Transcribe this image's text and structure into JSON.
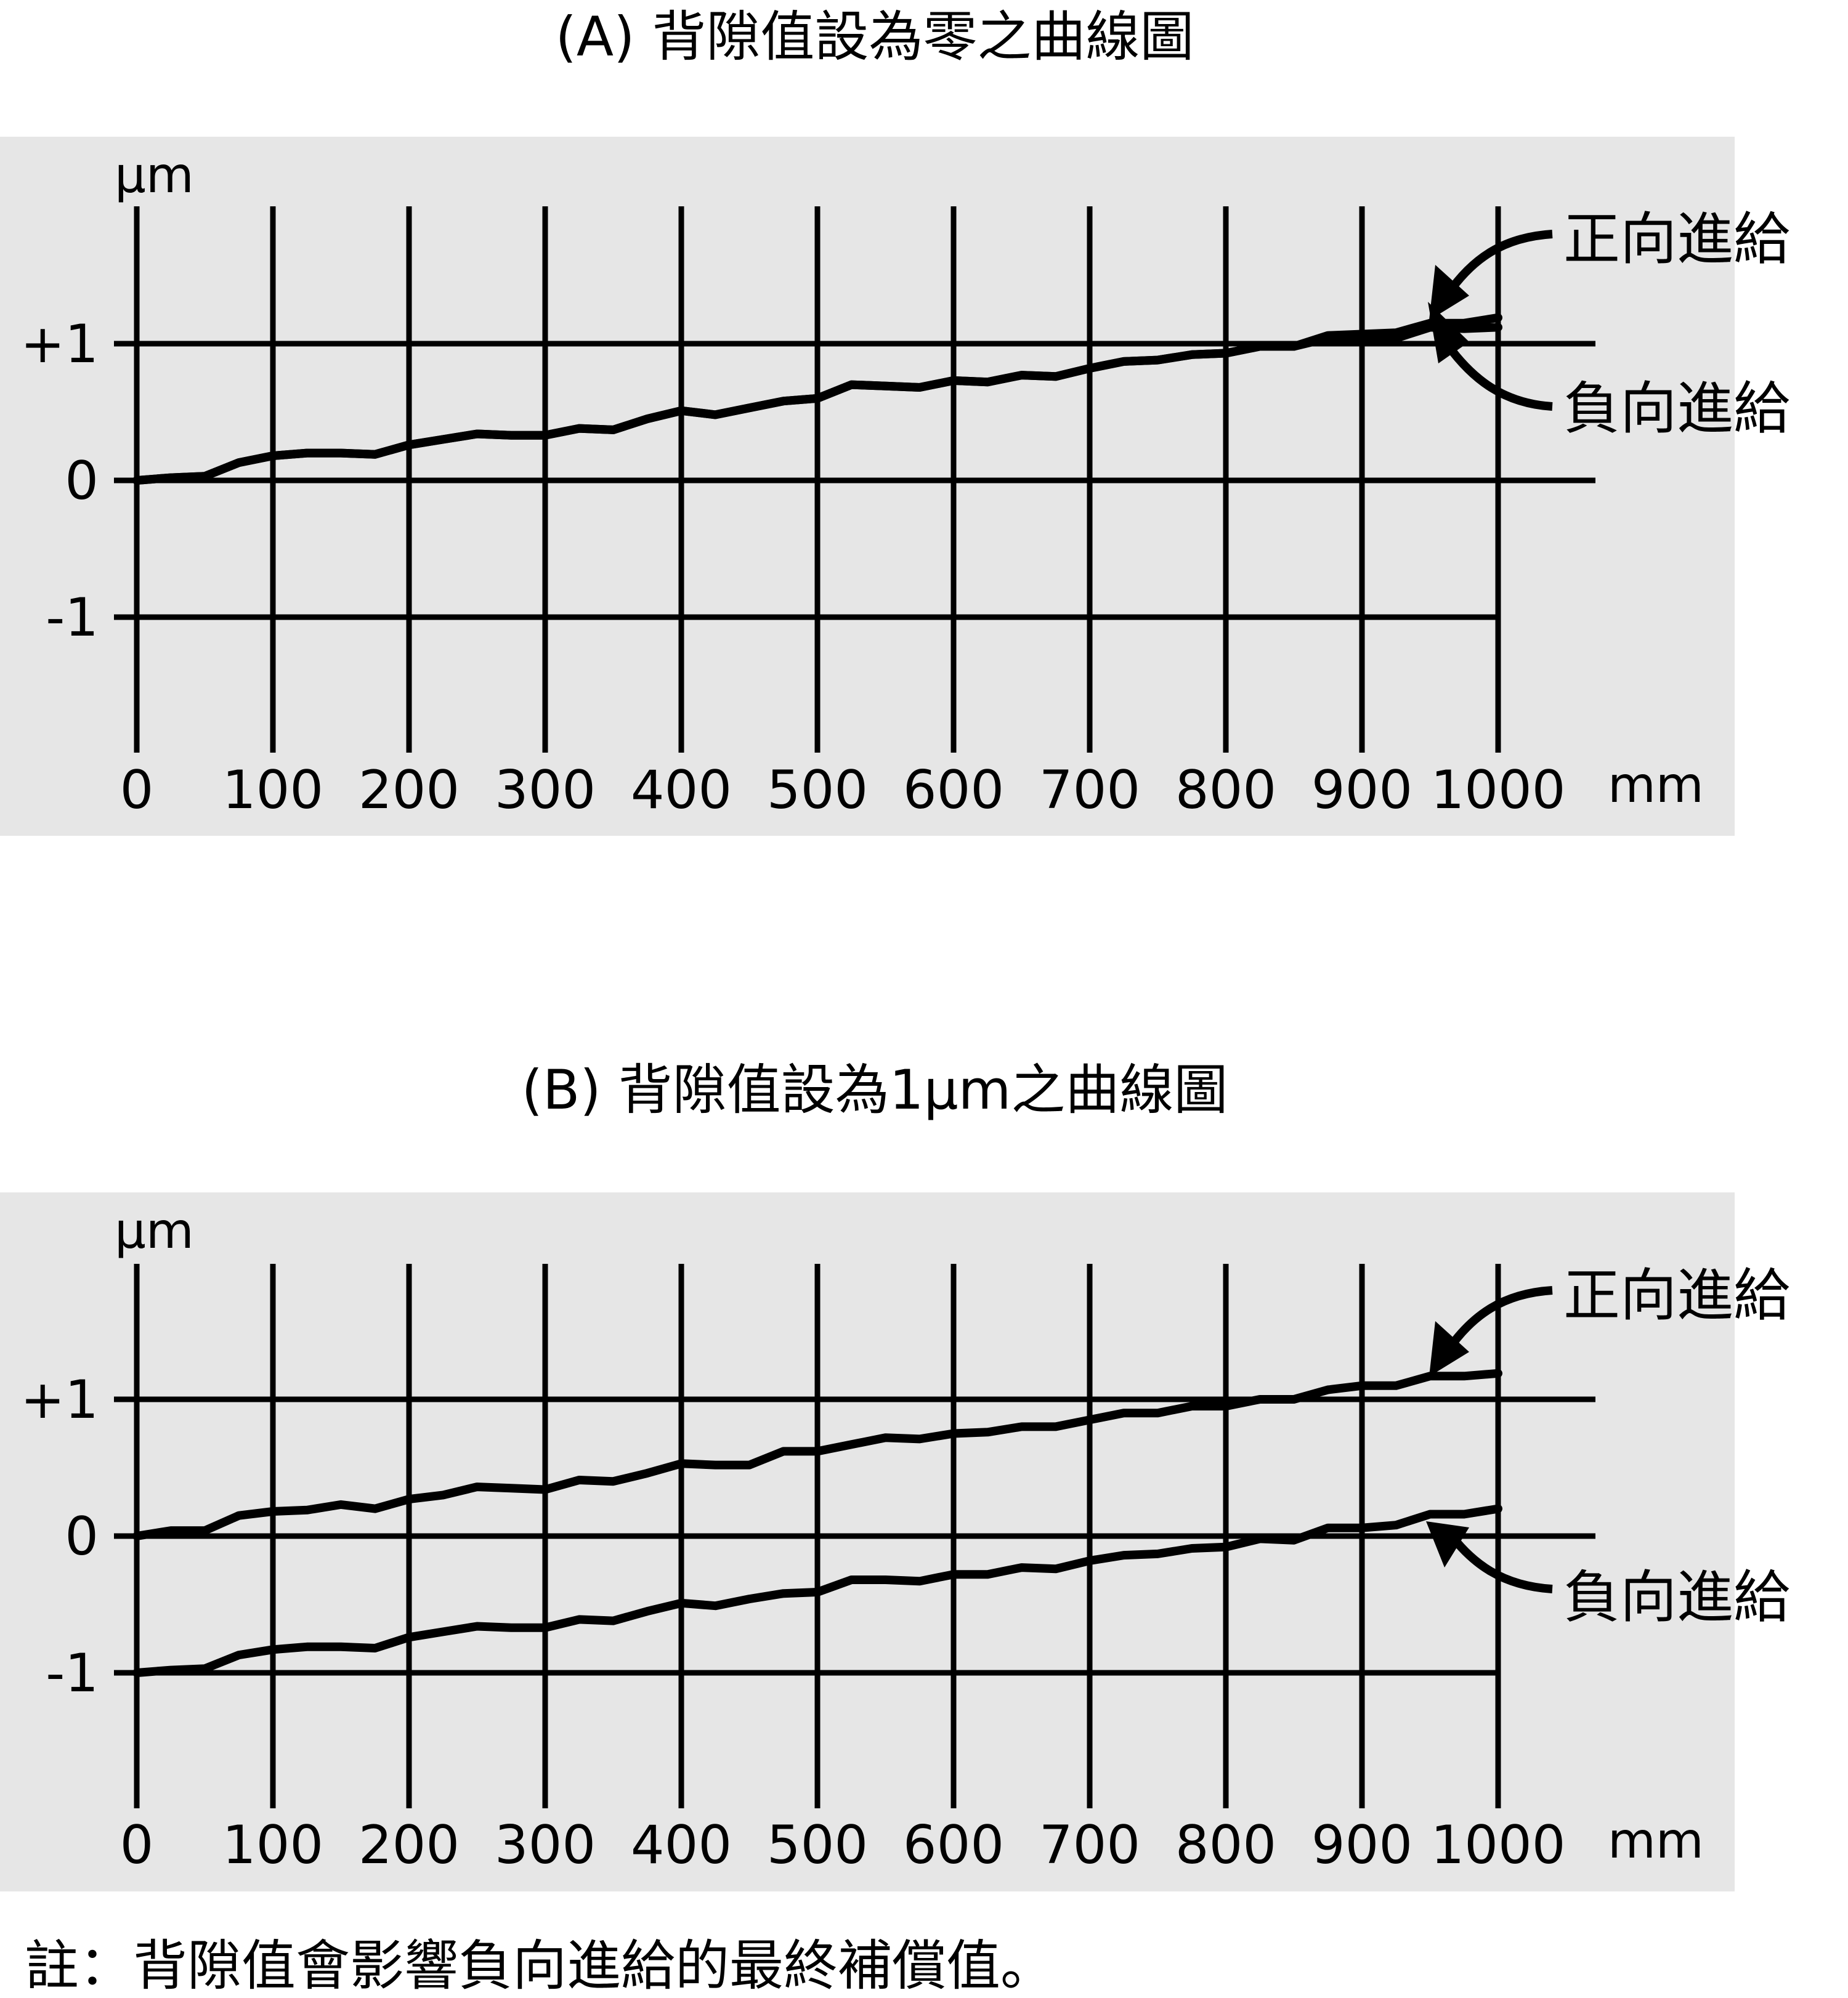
{
  "colors": {
    "panel_bg": "#e6e6e6",
    "ink": "#000000"
  },
  "note": "註：背隙值會影響負向進給的最終補償值。",
  "chart_data": [
    {
      "type": "line",
      "title": "(A) 背隙值設為零之曲線圖",
      "ylabel": "µm",
      "xunit": "mm",
      "x_ticks": [
        "0",
        "100",
        "200",
        "300",
        "400",
        "500",
        "600",
        "700",
        "800",
        "900",
        "1000"
      ],
      "y_ticks": [
        "+1",
        "0",
        "-1"
      ],
      "xlim": [
        0,
        1000
      ],
      "ylim": [
        -2,
        2
      ],
      "grid": true,
      "labels": {
        "forward": "正向進給",
        "negative": "負向進給"
      },
      "x": [
        0,
        25,
        50,
        75,
        100,
        125,
        150,
        175,
        200,
        225,
        250,
        275,
        300,
        325,
        350,
        375,
        400,
        425,
        450,
        475,
        500,
        525,
        550,
        575,
        600,
        625,
        650,
        675,
        700,
        725,
        750,
        775,
        800,
        825,
        850,
        875,
        900,
        925,
        950,
        975,
        1000
      ],
      "series": [
        {
          "name": "正向進給",
          "values": [
            0,
            0.02,
            0.03,
            0.13,
            0.18,
            0.2,
            0.2,
            0.19,
            0.26,
            0.3,
            0.34,
            0.33,
            0.33,
            0.38,
            0.37,
            0.45,
            0.51,
            0.48,
            0.53,
            0.58,
            0.6,
            0.7,
            0.69,
            0.68,
            0.73,
            0.72,
            0.77,
            0.76,
            0.82,
            0.87,
            0.88,
            0.92,
            0.93,
            0.98,
            0.98,
            1.06,
            1.07,
            1.08,
            1.15,
            1.15,
            1.19
          ]
        },
        {
          "name": "負向進給",
          "values": [
            0,
            0.02,
            0.03,
            0.13,
            0.18,
            0.2,
            0.2,
            0.19,
            0.26,
            0.3,
            0.34,
            0.33,
            0.33,
            0.38,
            0.37,
            0.45,
            0.51,
            0.48,
            0.53,
            0.58,
            0.6,
            0.7,
            0.69,
            0.68,
            0.73,
            0.72,
            0.77,
            0.76,
            0.82,
            0.87,
            0.88,
            0.92,
            0.93,
            0.98,
            0.98,
            1.04,
            1.02,
            1.04,
            1.12,
            1.11,
            1.12
          ]
        }
      ]
    },
    {
      "type": "line",
      "title": "(B) 背隙值設為1µm之曲線圖",
      "ylabel": "µm",
      "xunit": "mm",
      "x_ticks": [
        "0",
        "100",
        "200",
        "300",
        "400",
        "500",
        "600",
        "700",
        "800",
        "900",
        "1000"
      ],
      "y_ticks": [
        "+1",
        "0",
        "-1"
      ],
      "xlim": [
        0,
        1000
      ],
      "ylim": [
        -2,
        2
      ],
      "grid": true,
      "labels": {
        "forward": "正向進給",
        "negative": "負向進給"
      },
      "x": [
        0,
        25,
        50,
        75,
        100,
        125,
        150,
        175,
        200,
        225,
        250,
        275,
        300,
        325,
        350,
        375,
        400,
        425,
        450,
        475,
        500,
        525,
        550,
        575,
        600,
        625,
        650,
        675,
        700,
        725,
        750,
        775,
        800,
        825,
        850,
        875,
        900,
        925,
        950,
        975,
        1000
      ],
      "series": [
        {
          "name": "正向進給",
          "values": [
            0,
            0.04,
            0.04,
            0.15,
            0.18,
            0.19,
            0.23,
            0.2,
            0.27,
            0.3,
            0.36,
            0.35,
            0.34,
            0.41,
            0.4,
            0.46,
            0.53,
            0.52,
            0.52,
            0.62,
            0.62,
            0.67,
            0.72,
            0.71,
            0.75,
            0.76,
            0.8,
            0.8,
            0.85,
            0.9,
            0.9,
            0.95,
            0.95,
            1.0,
            1.0,
            1.07,
            1.1,
            1.1,
            1.17,
            1.17,
            1.19
          ]
        },
        {
          "name": "負向進給",
          "values": [
            -1,
            -0.98,
            -0.97,
            -0.87,
            -0.83,
            -0.81,
            -0.81,
            -0.82,
            -0.74,
            -0.7,
            -0.66,
            -0.67,
            -0.67,
            -0.61,
            -0.62,
            -0.55,
            -0.49,
            -0.51,
            -0.46,
            -0.42,
            -0.41,
            -0.32,
            -0.32,
            -0.33,
            -0.28,
            -0.28,
            -0.23,
            -0.24,
            -0.18,
            -0.14,
            -0.13,
            -0.09,
            -0.08,
            -0.02,
            -0.03,
            0.06,
            0.06,
            0.08,
            0.16,
            0.16,
            0.2
          ]
        }
      ]
    }
  ]
}
